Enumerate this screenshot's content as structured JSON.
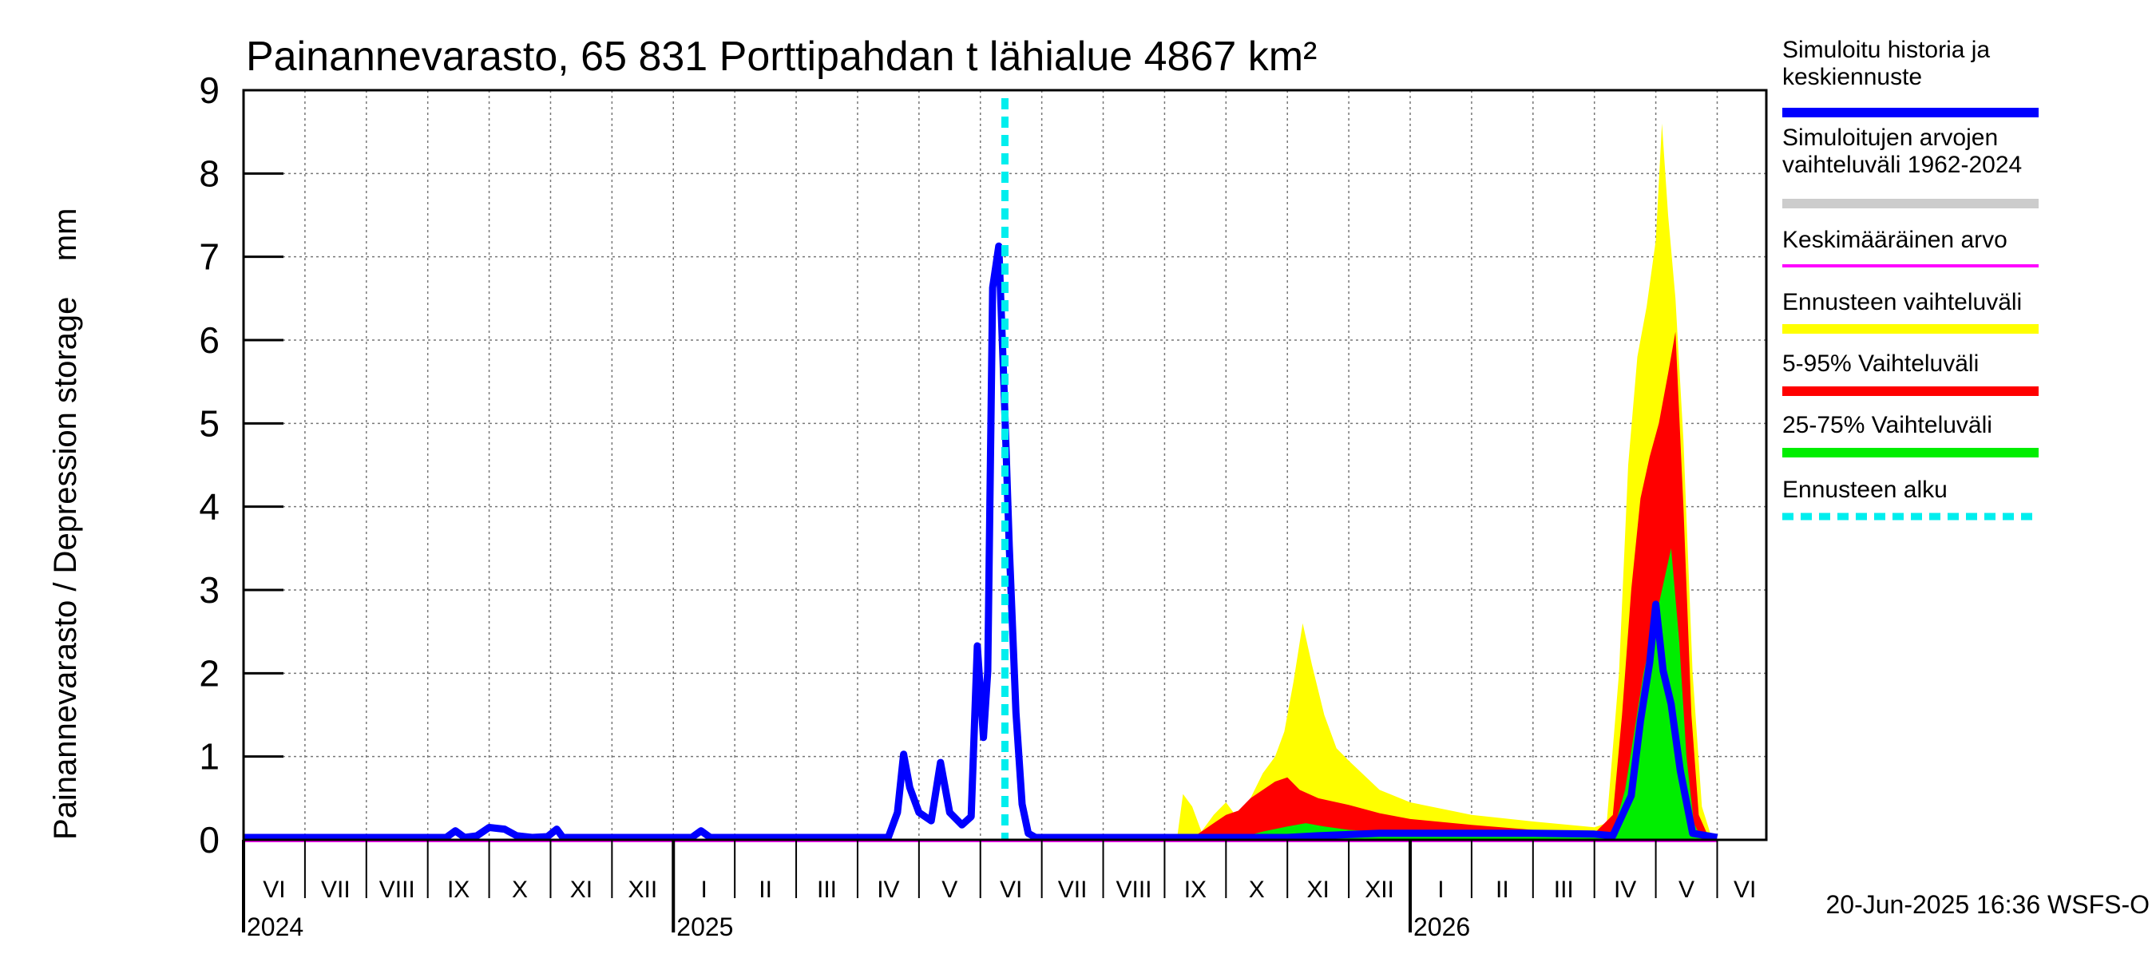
{
  "chart_data": {
    "type": "area",
    "title": "Painannevarasto, 65 831 Porttipahdan t lähialue 4867 km²",
    "ylabel": "Painannevarasto / Depression storage    mm",
    "ylim": [
      0,
      9
    ],
    "yticks": [
      "0",
      "1",
      "2",
      "3",
      "4",
      "5",
      "6",
      "7",
      "8",
      "9"
    ],
    "month_labels": [
      "VI",
      "VII",
      "VIII",
      "IX",
      "X",
      "XI",
      "XII",
      "I",
      "II",
      "III",
      "IV",
      "V",
      "VI",
      "VII",
      "VIII",
      "IX",
      "X",
      "XI",
      "XII",
      "I",
      "II",
      "III",
      "IV",
      "V",
      "VI"
    ],
    "year_labels": [
      "2024",
      "2025",
      "2026"
    ],
    "forecast_start_month": 12.4,
    "series": [
      {
        "name": "Simuloitu historia ja keskiennuste",
        "color": "#0000ff",
        "points": [
          [
            0,
            0
          ],
          [
            3.3,
            0
          ],
          [
            3.45,
            0.08
          ],
          [
            3.6,
            0
          ],
          [
            3.8,
            0.02
          ],
          [
            4.0,
            0.12
          ],
          [
            4.25,
            0.1
          ],
          [
            4.45,
            0.02
          ],
          [
            4.7,
            0
          ],
          [
            4.95,
            0.01
          ],
          [
            5.1,
            0.1
          ],
          [
            5.2,
            0
          ],
          [
            6.0,
            0
          ],
          [
            7.3,
            0
          ],
          [
            7.45,
            0.08
          ],
          [
            7.6,
            0
          ],
          [
            9.0,
            0
          ],
          [
            10.5,
            0
          ],
          [
            10.65,
            0.3
          ],
          [
            10.75,
            1.0
          ],
          [
            10.85,
            0.6
          ],
          [
            11.0,
            0.3
          ],
          [
            11.2,
            0.2
          ],
          [
            11.35,
            0.9
          ],
          [
            11.5,
            0.3
          ],
          [
            11.7,
            0.15
          ],
          [
            11.85,
            0.25
          ],
          [
            11.95,
            2.3
          ],
          [
            12.05,
            1.2
          ],
          [
            12.12,
            2.0
          ],
          [
            12.2,
            6.6
          ],
          [
            12.3,
            7.1
          ],
          [
            12.38,
            5.5
          ],
          [
            12.47,
            3.5
          ],
          [
            12.58,
            1.5
          ],
          [
            12.68,
            0.4
          ],
          [
            12.78,
            0.05
          ],
          [
            12.9,
            0
          ],
          [
            17.0,
            0
          ],
          [
            17.5,
            0.02
          ],
          [
            18.5,
            0.05
          ],
          [
            21.0,
            0.05
          ],
          [
            22.0,
            0.04
          ],
          [
            22.3,
            0.02
          ],
          [
            22.6,
            0.5
          ],
          [
            22.75,
            1.4
          ],
          [
            22.9,
            2.1
          ],
          [
            23.0,
            2.8
          ],
          [
            23.12,
            2.0
          ],
          [
            23.25,
            1.6
          ],
          [
            23.4,
            0.8
          ],
          [
            23.6,
            0.05
          ],
          [
            24.0,
            0
          ]
        ]
      },
      {
        "name": "Simuloitujen arvojen vaihteluväli 1962-2024",
        "color": "#cccccc",
        "points": []
      },
      {
        "name": "Keskimääräinen arvo",
        "color": "#ff00ff",
        "points": [
          [
            0,
            0
          ],
          [
            24.0,
            0
          ]
        ]
      },
      {
        "name": "Ennusteen vaihteluväli",
        "color": "#ffff00",
        "points": [
          [
            15.2,
            0
          ],
          [
            15.3,
            0.55
          ],
          [
            15.45,
            0.4
          ],
          [
            15.6,
            0.1
          ],
          [
            15.8,
            0.3
          ],
          [
            16.0,
            0.45
          ],
          [
            16.2,
            0.25
          ],
          [
            16.4,
            0.5
          ],
          [
            16.6,
            0.8
          ],
          [
            16.8,
            1.0
          ],
          [
            16.95,
            1.3
          ],
          [
            17.1,
            1.9
          ],
          [
            17.25,
            2.6
          ],
          [
            17.4,
            2.1
          ],
          [
            17.6,
            1.5
          ],
          [
            17.8,
            1.1
          ],
          [
            18.0,
            0.95
          ],
          [
            18.5,
            0.6
          ],
          [
            19.0,
            0.45
          ],
          [
            20.0,
            0.3
          ],
          [
            21.0,
            0.22
          ],
          [
            22.0,
            0.15
          ],
          [
            22.2,
            0.2
          ],
          [
            22.4,
            2.0
          ],
          [
            22.55,
            4.5
          ],
          [
            22.7,
            5.8
          ],
          [
            22.85,
            6.4
          ],
          [
            23.0,
            7.2
          ],
          [
            23.1,
            8.6
          ],
          [
            23.2,
            7.5
          ],
          [
            23.32,
            6.5
          ],
          [
            23.45,
            4.8
          ],
          [
            23.6,
            2.0
          ],
          [
            23.75,
            0.4
          ],
          [
            23.9,
            0.05
          ],
          [
            24.0,
            0
          ]
        ]
      },
      {
        "name": "5-95% Vaihteluväli",
        "color": "#ff0000",
        "points": [
          [
            15.4,
            0
          ],
          [
            15.6,
            0.1
          ],
          [
            15.8,
            0.2
          ],
          [
            16.0,
            0.3
          ],
          [
            16.2,
            0.35
          ],
          [
            16.4,
            0.5
          ],
          [
            16.6,
            0.6
          ],
          [
            16.8,
            0.7
          ],
          [
            17.0,
            0.75
          ],
          [
            17.2,
            0.6
          ],
          [
            17.5,
            0.5
          ],
          [
            18.0,
            0.42
          ],
          [
            18.5,
            0.32
          ],
          [
            19.0,
            0.25
          ],
          [
            20.0,
            0.18
          ],
          [
            21.0,
            0.12
          ],
          [
            22.0,
            0.08
          ],
          [
            22.3,
            0.3
          ],
          [
            22.45,
            1.5
          ],
          [
            22.6,
            3.0
          ],
          [
            22.75,
            4.1
          ],
          [
            22.9,
            4.6
          ],
          [
            23.05,
            5.0
          ],
          [
            23.2,
            5.6
          ],
          [
            23.32,
            6.1
          ],
          [
            23.45,
            4.0
          ],
          [
            23.58,
            1.5
          ],
          [
            23.7,
            0.3
          ],
          [
            23.85,
            0.05
          ],
          [
            24.0,
            0
          ]
        ]
      },
      {
        "name": "25-75% Vaihteluväli",
        "color": "#00ee00",
        "points": [
          [
            16.0,
            0
          ],
          [
            16.3,
            0.04
          ],
          [
            16.6,
            0.1
          ],
          [
            17.0,
            0.16
          ],
          [
            17.3,
            0.2
          ],
          [
            17.6,
            0.16
          ],
          [
            18.0,
            0.12
          ],
          [
            18.5,
            0.1
          ],
          [
            19.0,
            0.08
          ],
          [
            20.0,
            0.06
          ],
          [
            21.0,
            0.05
          ],
          [
            22.0,
            0.05
          ],
          [
            22.3,
            0.08
          ],
          [
            22.5,
            0.6
          ],
          [
            22.65,
            1.3
          ],
          [
            22.8,
            2.0
          ],
          [
            22.95,
            2.5
          ],
          [
            23.1,
            3.0
          ],
          [
            23.25,
            3.5
          ],
          [
            23.38,
            2.4
          ],
          [
            23.5,
            1.0
          ],
          [
            23.62,
            0.2
          ],
          [
            23.75,
            0
          ],
          [
            24.0,
            0
          ]
        ]
      },
      {
        "name": "Ennusteen alku",
        "color": "#00eeee",
        "points": []
      }
    ]
  },
  "legend": [
    {
      "label": "Simuloitu historia ja\nkeskiennuste",
      "color": "#0000ff",
      "style": "solid"
    },
    {
      "label": "Simuloitujen arvojen\nvaihteluväli 1962-2024",
      "color": "#cccccc",
      "style": "solid"
    },
    {
      "label": "Keskimääräinen arvo",
      "color": "#ff00ff",
      "style": "thin"
    },
    {
      "label": "Ennusteen vaihteluväli",
      "color": "#ffff00",
      "style": "solid"
    },
    {
      "label": "5-95% Vaihteluväli",
      "color": "#ff0000",
      "style": "solid"
    },
    {
      "label": "25-75% Vaihteluväli",
      "color": "#00ee00",
      "style": "solid"
    },
    {
      "label": "Ennusteen alku",
      "color": "#00eeee",
      "style": "dashed"
    }
  ],
  "footer": {
    "timestamp": "20-Jun-2025 16:36 WSFS-O"
  }
}
